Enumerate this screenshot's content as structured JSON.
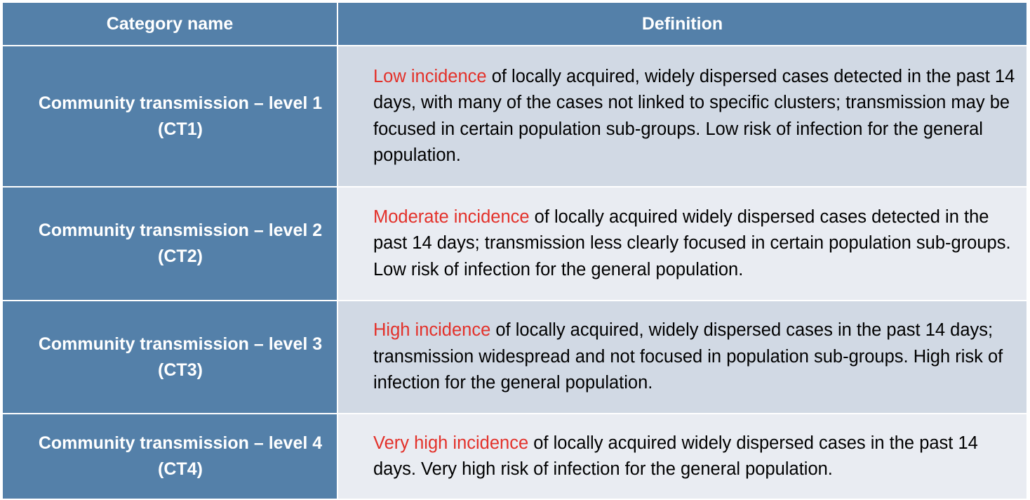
{
  "header": {
    "category_label": "Category name",
    "definition_label": "Definition"
  },
  "rows": [
    {
      "category": "Community transmission – level 1 (CT1)",
      "highlight": "Low incidence",
      "definition": " of locally acquired, widely dispersed cases detected in the past 14 days, with many of the cases not linked to specific clusters; transmission may be focused in certain population sub-groups. Low risk of infection for the general population."
    },
    {
      "category": "Community transmission – level 2 (CT2)",
      "highlight": "Moderate incidence",
      "definition": " of locally acquired widely dispersed cases detected in the past 14 days; transmission less clearly focused in certain population sub-groups. Low risk of infection for the general population."
    },
    {
      "category": "Community transmission – level 3 (CT3)",
      "highlight": "High incidence",
      "definition": " of locally acquired, widely dispersed cases in the past 14 days; transmission widespread and not focused in population sub-groups. High risk of infection for the general population."
    },
    {
      "category": "Community transmission – level 4 (CT4)",
      "highlight": "Very high incidence",
      "definition": " of locally acquired widely dispersed cases in the past 14 days. Very high risk of infection for the general population."
    }
  ],
  "colors": {
    "header_bg": "#5480a9",
    "row_odd_bg": "#d1d9e4",
    "row_even_bg": "#e9ecf2",
    "highlight": "#e3312a"
  }
}
